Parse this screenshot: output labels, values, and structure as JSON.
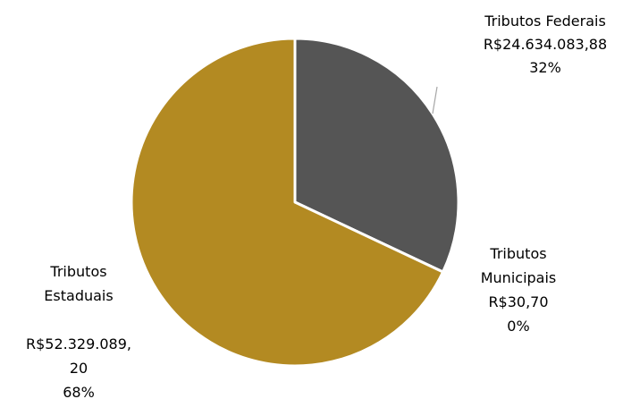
{
  "chart_data": {
    "type": "pie",
    "title": "",
    "slices": [
      {
        "id": "federais",
        "category": "Tributos Federais",
        "value": 24634083.88,
        "value_label": "R$24.634.083,88",
        "percent_label": "32%",
        "color": "#555555"
      },
      {
        "id": "municipais",
        "category": "Tributos Municipais",
        "value": 30.7,
        "value_label": "R$30,70",
        "percent_label": "0%",
        "color": "#7a7a7a"
      },
      {
        "id": "estaduais",
        "category": "Tributos Estaduais",
        "value": 52329089.2,
        "value_label": "R$52.329.089,20",
        "percent_label": "68%",
        "color": "#b38a22"
      }
    ],
    "data_labels": {
      "federais": {
        "lines": [
          "Tributos Federais",
          "R$24.634.083,88",
          "32%"
        ]
      },
      "municipais": {
        "lines": [
          "Tributos",
          "Municipais",
          "R$30,70",
          "0%"
        ]
      },
      "estaduais": {
        "lines": [
          "Tributos",
          "Estaduais",
          "",
          "R$52.329.089,",
          "20",
          "68%"
        ]
      }
    },
    "slice_border_color": "#ffffff",
    "leader_line_color": "#a6a6a6",
    "legend": "none"
  }
}
